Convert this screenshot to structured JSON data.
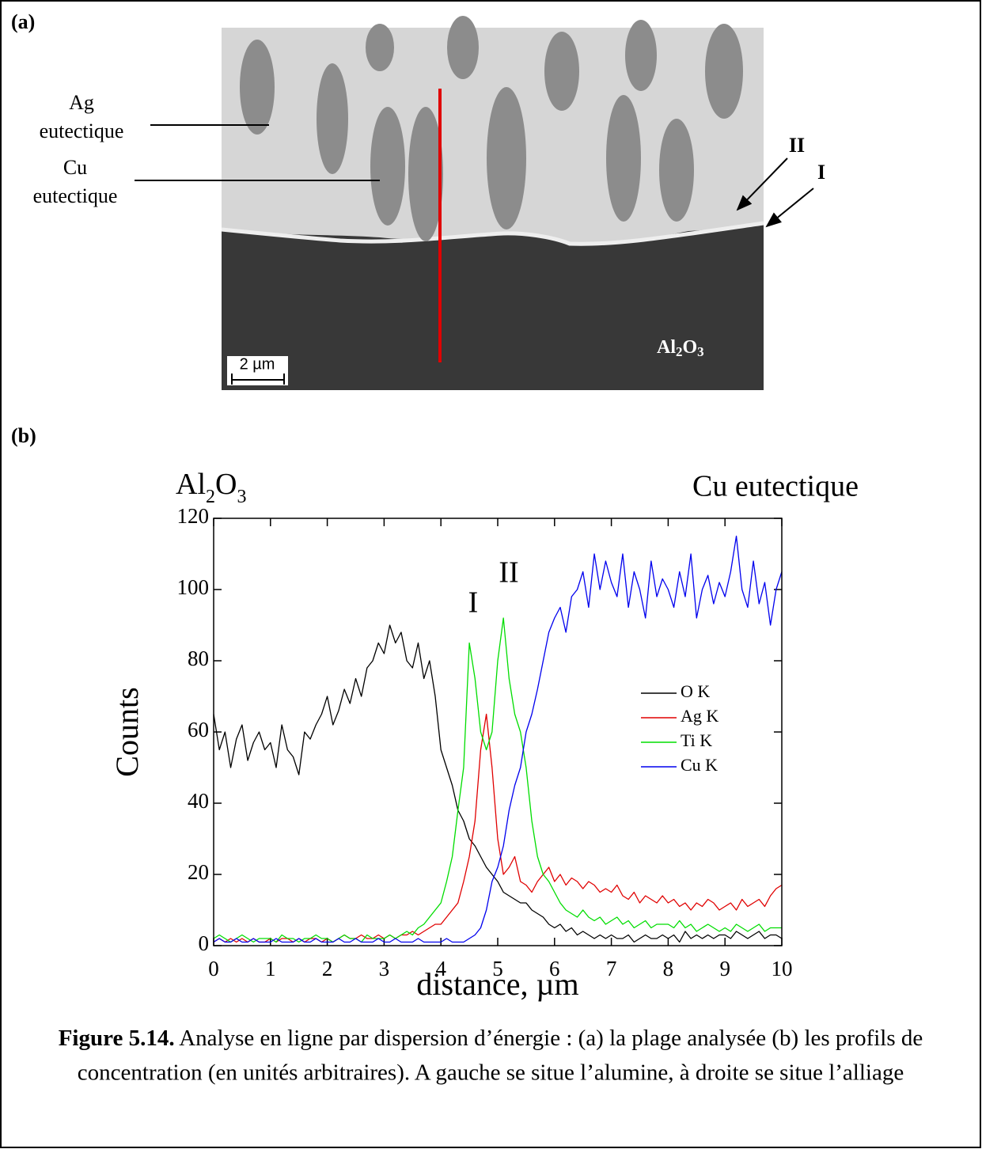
{
  "panel_a": {
    "label": "(a)",
    "ag_label": [
      "Ag",
      "eutectique"
    ],
    "cu_label": [
      "Cu",
      "eutectique"
    ],
    "arrow_II": "II",
    "arrow_I": "I",
    "substrate": [
      "Al",
      "2",
      "O",
      "3"
    ],
    "scale_bar": "2 µm"
  },
  "panel_b_label": "(b)",
  "chart_data": {
    "type": "line",
    "annotations": {
      "left": [
        "Al",
        "2",
        "O",
        "3"
      ],
      "right": "Cu eutectique",
      "peak_I": "I",
      "peak_II": "II"
    },
    "xlabel": "distance, µm",
    "ylabel": "Counts",
    "xlim": [
      0,
      10
    ],
    "ylim": [
      0,
      120
    ],
    "xticks": [
      0,
      1,
      2,
      3,
      4,
      5,
      6,
      7,
      8,
      9,
      10
    ],
    "yticks": [
      0,
      20,
      40,
      60,
      80,
      100,
      120
    ],
    "x": [
      0,
      0.1,
      0.2,
      0.3,
      0.4,
      0.5,
      0.6,
      0.7,
      0.8,
      0.9,
      1,
      1.1,
      1.2,
      1.3,
      1.4,
      1.5,
      1.6,
      1.7,
      1.8,
      1.9,
      2,
      2.1,
      2.2,
      2.3,
      2.4,
      2.5,
      2.6,
      2.7,
      2.8,
      2.9,
      3,
      3.1,
      3.2,
      3.3,
      3.4,
      3.5,
      3.6,
      3.7,
      3.8,
      3.9,
      4,
      4.1,
      4.2,
      4.3,
      4.4,
      4.5,
      4.6,
      4.7,
      4.8,
      4.9,
      5,
      5.1,
      5.2,
      5.3,
      5.4,
      5.5,
      5.6,
      5.7,
      5.8,
      5.9,
      6,
      6.1,
      6.2,
      6.3,
      6.4,
      6.5,
      6.6,
      6.7,
      6.8,
      6.9,
      7,
      7.1,
      7.2,
      7.3,
      7.4,
      7.5,
      7.6,
      7.7,
      7.8,
      7.9,
      8,
      8.1,
      8.2,
      8.3,
      8.4,
      8.5,
      8.6,
      8.7,
      8.8,
      8.9,
      9,
      9.1,
      9.2,
      9.3,
      9.4,
      9.5,
      9.6,
      9.7,
      9.8,
      9.9,
      10
    ],
    "series": [
      {
        "name": "O K",
        "color": "#000000",
        "values": [
          65,
          55,
          60,
          50,
          58,
          62,
          52,
          57,
          60,
          55,
          57,
          50,
          62,
          55,
          53,
          48,
          60,
          58,
          62,
          65,
          70,
          62,
          66,
          72,
          68,
          75,
          70,
          78,
          80,
          85,
          82,
          90,
          85,
          88,
          80,
          78,
          85,
          75,
          80,
          70,
          55,
          50,
          45,
          38,
          35,
          30,
          28,
          25,
          22,
          20,
          18,
          15,
          14,
          13,
          12,
          12,
          10,
          9,
          8,
          6,
          5,
          6,
          4,
          5,
          3,
          4,
          3,
          2,
          3,
          2,
          3,
          2,
          2,
          3,
          1,
          2,
          3,
          2,
          2,
          3,
          2,
          3,
          1,
          4,
          2,
          3,
          2,
          3,
          2,
          3,
          3,
          2,
          4,
          3,
          2,
          3,
          4,
          2,
          3,
          3,
          2
        ]
      },
      {
        "name": "Ag K",
        "color": "#e00000",
        "values": [
          1,
          2,
          1,
          2,
          1,
          2,
          1,
          2,
          1,
          1,
          2,
          1,
          2,
          2,
          1,
          2,
          1,
          2,
          2,
          1,
          2,
          1,
          2,
          3,
          2,
          2,
          3,
          2,
          2,
          3,
          2,
          3,
          2,
          3,
          3,
          4,
          3,
          4,
          5,
          6,
          6,
          8,
          10,
          12,
          18,
          25,
          35,
          55,
          65,
          50,
          30,
          20,
          22,
          25,
          18,
          17,
          15,
          18,
          20,
          22,
          18,
          20,
          17,
          19,
          18,
          16,
          18,
          17,
          15,
          16,
          15,
          17,
          14,
          13,
          15,
          12,
          14,
          13,
          12,
          14,
          12,
          13,
          11,
          12,
          10,
          12,
          11,
          13,
          12,
          10,
          11,
          12,
          10,
          13,
          11,
          12,
          13,
          11,
          14,
          16,
          17
        ]
      },
      {
        "name": "Ti K",
        "color": "#00dd00",
        "values": [
          2,
          3,
          2,
          1,
          2,
          3,
          2,
          1,
          2,
          2,
          2,
          1,
          3,
          2,
          2,
          1,
          2,
          2,
          3,
          2,
          2,
          1,
          2,
          3,
          2,
          2,
          1,
          3,
          2,
          2,
          2,
          3,
          2,
          3,
          4,
          3,
          5,
          6,
          8,
          10,
          12,
          18,
          25,
          38,
          50,
          85,
          75,
          60,
          55,
          60,
          80,
          92,
          75,
          65,
          60,
          50,
          35,
          25,
          20,
          18,
          15,
          12,
          10,
          9,
          8,
          10,
          8,
          7,
          8,
          6,
          7,
          8,
          6,
          7,
          5,
          6,
          7,
          5,
          6,
          6,
          6,
          5,
          7,
          5,
          6,
          4,
          5,
          6,
          5,
          4,
          5,
          4,
          6,
          5,
          4,
          5,
          6,
          4,
          5,
          5,
          5
        ]
      },
      {
        "name": "Cu K",
        "color": "#0000ee",
        "values": [
          1,
          2,
          1,
          1,
          2,
          1,
          1,
          2,
          1,
          1,
          1,
          2,
          1,
          1,
          1,
          2,
          1,
          1,
          2,
          1,
          1,
          1,
          2,
          1,
          1,
          2,
          1,
          1,
          1,
          2,
          1,
          1,
          2,
          1,
          1,
          1,
          2,
          1,
          1,
          1,
          1,
          2,
          1,
          1,
          1,
          2,
          3,
          5,
          10,
          18,
          22,
          28,
          38,
          45,
          50,
          60,
          65,
          72,
          80,
          88,
          92,
          95,
          88,
          98,
          100,
          105,
          95,
          110,
          100,
          108,
          102,
          98,
          110,
          95,
          105,
          100,
          92,
          108,
          98,
          103,
          100,
          95,
          105,
          98,
          110,
          92,
          100,
          104,
          96,
          102,
          98,
          105,
          115,
          100,
          95,
          108,
          96,
          102,
          90,
          100,
          105
        ]
      }
    ]
  },
  "caption": {
    "label": "Figure 5.14.",
    "lines": [
      " Analyse en ligne par dispersion d’énergie : (a) la plage analysée (b) les profils de",
      "concentration (en unités arbitraires). A gauche se situe l’alumine, à droite se situe l’alliage"
    ]
  }
}
